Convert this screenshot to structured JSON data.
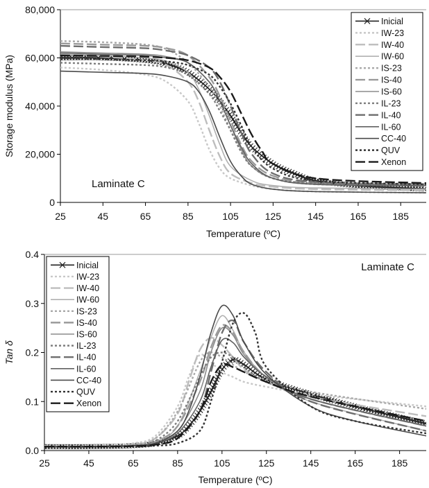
{
  "chart_data": [
    {
      "type": "line",
      "title": "",
      "annotation": "Laminate C",
      "xlabel": "Temperature (ºC)",
      "ylabel": "Storage modulus (MPa)",
      "xlim": [
        25,
        197
      ],
      "ylim": [
        0,
        80000
      ],
      "xticks": [
        "25",
        "45",
        "65",
        "85",
        "105",
        "125",
        "145",
        "165",
        "185"
      ],
      "yticks": [
        "0",
        "20,000",
        "40,000",
        "60,000",
        "80,000"
      ],
      "legend_position": "top-right",
      "grid": false,
      "series": [
        {
          "name": "Inicial",
          "color": "#222222",
          "dash": "solid",
          "marker": "x",
          "x": [
            25,
            45,
            65,
            75,
            85,
            95,
            100,
            105,
            110,
            115,
            125,
            135,
            145,
            165,
            185,
            197
          ],
          "y": [
            60000,
            60000,
            59000,
            57500,
            54000,
            47000,
            42000,
            36000,
            29000,
            23000,
            16000,
            12000,
            9000,
            7000,
            6000,
            5500
          ]
        },
        {
          "name": "IW-23",
          "color": "#c8c8c8",
          "dash": "3 3",
          "x": [
            25,
            45,
            65,
            75,
            85,
            90,
            95,
            100,
            105,
            115,
            125,
            145,
            197
          ],
          "y": [
            56000,
            55000,
            53000,
            50000,
            42000,
            33000,
            22000,
            14000,
            10000,
            7000,
            5500,
            4500,
            4000
          ]
        },
        {
          "name": "IW-40",
          "color": "#bdbdbd",
          "dash": "14 5",
          "x": [
            25,
            45,
            65,
            75,
            85,
            90,
            95,
            100,
            105,
            115,
            125,
            145,
            197
          ],
          "y": [
            61000,
            60500,
            59000,
            57000,
            50000,
            42000,
            30000,
            19000,
            12000,
            8000,
            6500,
            5500,
            5000
          ]
        },
        {
          "name": "IW-60",
          "color": "#b0b0b0",
          "dash": "solid",
          "x": [
            25,
            45,
            65,
            75,
            85,
            90,
            95,
            100,
            105,
            115,
            125,
            145,
            197
          ],
          "y": [
            61500,
            61000,
            60000,
            58500,
            54000,
            47000,
            36000,
            24000,
            15000,
            9000,
            7000,
            6000,
            5500
          ]
        },
        {
          "name": "IS-23",
          "color": "#a8a8a8",
          "dash": "3 3",
          "x": [
            25,
            45,
            65,
            75,
            85,
            95,
            100,
            105,
            110,
            115,
            125,
            145,
            197
          ],
          "y": [
            67000,
            66500,
            65500,
            63500,
            58000,
            48000,
            40000,
            30000,
            21000,
            15000,
            10000,
            7500,
            7000
          ]
        },
        {
          "name": "IS-40",
          "color": "#9a9a9a",
          "dash": "14 5",
          "x": [
            25,
            45,
            65,
            75,
            85,
            95,
            100,
            105,
            110,
            115,
            125,
            145,
            197
          ],
          "y": [
            66000,
            65500,
            65000,
            64000,
            61000,
            52000,
            44000,
            34000,
            24000,
            17000,
            11000,
            8000,
            7500
          ]
        },
        {
          "name": "IS-60",
          "color": "#8c8c8c",
          "dash": "solid",
          "x": [
            25,
            45,
            65,
            75,
            85,
            95,
            100,
            105,
            110,
            115,
            125,
            145,
            197
          ],
          "y": [
            62500,
            62000,
            61500,
            60500,
            58000,
            50000,
            42000,
            32000,
            22000,
            15000,
            10000,
            7500,
            7000
          ]
        },
        {
          "name": "IL-23",
          "color": "#7d7d7d",
          "dash": "3 3",
          "x": [
            25,
            45,
            65,
            75,
            85,
            95,
            100,
            105,
            110,
            115,
            125,
            145,
            197
          ],
          "y": [
            58000,
            57500,
            57000,
            56000,
            53000,
            45000,
            38000,
            30000,
            21000,
            15000,
            10000,
            8000,
            7500
          ]
        },
        {
          "name": "IL-40",
          "color": "#6e6e6e",
          "dash": "14 5",
          "x": [
            25,
            45,
            65,
            75,
            85,
            95,
            100,
            105,
            110,
            115,
            125,
            145,
            197
          ],
          "y": [
            65000,
            64500,
            64000,
            63000,
            61000,
            56000,
            50000,
            40000,
            29000,
            20000,
            12000,
            8500,
            7500
          ]
        },
        {
          "name": "IL-60",
          "color": "#606060",
          "dash": "solid",
          "x": [
            25,
            45,
            65,
            75,
            85,
            95,
            100,
            105,
            110,
            115,
            125,
            145,
            197
          ],
          "y": [
            62000,
            61500,
            61000,
            60000,
            58000,
            50000,
            42000,
            32000,
            23000,
            16000,
            10000,
            7500,
            7000
          ]
        },
        {
          "name": "CC-40",
          "color": "#4a4a4a",
          "dash": "solid",
          "x": [
            25,
            45,
            65,
            75,
            85,
            90,
            95,
            100,
            105,
            110,
            115,
            125,
            145,
            197
          ],
          "y": [
            54500,
            54000,
            53500,
            52500,
            50000,
            46000,
            38000,
            27000,
            17000,
            11000,
            7500,
            5500,
            4500,
            4000
          ]
        },
        {
          "name": "QUV",
          "color": "#333333",
          "dash": "3 3",
          "x": [
            25,
            45,
            65,
            75,
            85,
            95,
            100,
            105,
            110,
            115,
            125,
            145,
            197
          ],
          "y": [
            60000,
            59500,
            59000,
            58500,
            57000,
            53000,
            48000,
            41000,
            32000,
            23000,
            14000,
            9000,
            7500
          ]
        },
        {
          "name": "Xenon",
          "color": "#1a1a1a",
          "dash": "14 5",
          "x": [
            25,
            45,
            65,
            75,
            85,
            95,
            100,
            105,
            110,
            115,
            120,
            125,
            145,
            197
          ],
          "y": [
            61000,
            60800,
            60500,
            60000,
            59000,
            56000,
            52000,
            46000,
            37000,
            28000,
            21000,
            16000,
            10000,
            8000
          ]
        }
      ]
    },
    {
      "type": "line",
      "title": "",
      "annotation": "Laminate C",
      "xlabel": "Temperature (ºC)",
      "ylabel": "Tan δ",
      "xlim": [
        25,
        197
      ],
      "ylim": [
        0,
        0.4
      ],
      "xticks": [
        "25",
        "45",
        "65",
        "85",
        "105",
        "125",
        "145",
        "165",
        "185"
      ],
      "yticks": [
        "0.0",
        "0.1",
        "0.2",
        "0.3",
        "0.4"
      ],
      "legend_position": "top-left",
      "grid": false,
      "series": [
        {
          "name": "Inicial",
          "color": "#222222",
          "dash": "solid",
          "marker": "x",
          "x": [
            25,
            45,
            65,
            75,
            85,
            90,
            95,
            100,
            105,
            110,
            115,
            125,
            145,
            165,
            185,
            197
          ],
          "y": [
            0.008,
            0.008,
            0.01,
            0.015,
            0.03,
            0.05,
            0.08,
            0.12,
            0.165,
            0.185,
            0.175,
            0.145,
            0.115,
            0.09,
            0.068,
            0.055
          ]
        },
        {
          "name": "IW-23",
          "color": "#c8c8c8",
          "dash": "3 3",
          "x": [
            25,
            45,
            65,
            75,
            85,
            90,
            95,
            100,
            105,
            110,
            115,
            125,
            145,
            197
          ],
          "y": [
            0.01,
            0.01,
            0.015,
            0.03,
            0.09,
            0.15,
            0.195,
            0.18,
            0.16,
            0.15,
            0.14,
            0.13,
            0.115,
            0.09
          ]
        },
        {
          "name": "IW-40",
          "color": "#bdbdbd",
          "dash": "14 5",
          "x": [
            25,
            45,
            65,
            75,
            85,
            90,
            95,
            100,
            105,
            110,
            115,
            125,
            145,
            197
          ],
          "y": [
            0.008,
            0.008,
            0.012,
            0.025,
            0.075,
            0.14,
            0.205,
            0.23,
            0.215,
            0.19,
            0.165,
            0.14,
            0.11,
            0.07
          ]
        },
        {
          "name": "IW-60",
          "color": "#b0b0b0",
          "dash": "solid",
          "x": [
            25,
            45,
            65,
            75,
            85,
            95,
            100,
            105,
            110,
            115,
            125,
            145,
            197
          ],
          "y": [
            0.008,
            0.008,
            0.01,
            0.018,
            0.05,
            0.16,
            0.23,
            0.275,
            0.245,
            0.2,
            0.15,
            0.1,
            0.04
          ]
        },
        {
          "name": "IS-23",
          "color": "#a8a8a8",
          "dash": "3 3",
          "x": [
            25,
            45,
            65,
            75,
            85,
            95,
            100,
            105,
            110,
            115,
            125,
            145,
            197
          ],
          "y": [
            0.008,
            0.008,
            0.012,
            0.025,
            0.08,
            0.18,
            0.2,
            0.19,
            0.175,
            0.16,
            0.145,
            0.12,
            0.085
          ]
        },
        {
          "name": "IS-40",
          "color": "#9a9a9a",
          "dash": "14 5",
          "x": [
            25,
            45,
            65,
            75,
            85,
            95,
            100,
            105,
            110,
            115,
            125,
            145,
            197
          ],
          "y": [
            0.008,
            0.008,
            0.01,
            0.018,
            0.05,
            0.14,
            0.21,
            0.255,
            0.24,
            0.2,
            0.15,
            0.105,
            0.05
          ]
        },
        {
          "name": "IS-60",
          "color": "#8c8c8c",
          "dash": "solid",
          "x": [
            25,
            45,
            65,
            75,
            85,
            95,
            100,
            105,
            110,
            115,
            125,
            145,
            197
          ],
          "y": [
            0.008,
            0.008,
            0.01,
            0.015,
            0.04,
            0.12,
            0.2,
            0.25,
            0.235,
            0.195,
            0.15,
            0.105,
            0.05
          ]
        },
        {
          "name": "IL-23",
          "color": "#7d7d7d",
          "dash": "3 3",
          "x": [
            25,
            45,
            65,
            75,
            85,
            95,
            100,
            105,
            110,
            115,
            125,
            145,
            197
          ],
          "y": [
            0.008,
            0.008,
            0.01,
            0.02,
            0.06,
            0.15,
            0.19,
            0.2,
            0.19,
            0.17,
            0.14,
            0.11,
            0.06
          ]
        },
        {
          "name": "IL-40",
          "color": "#6e6e6e",
          "dash": "14 5",
          "x": [
            25,
            45,
            65,
            75,
            85,
            95,
            100,
            105,
            110,
            115,
            125,
            145,
            197
          ],
          "y": [
            0.008,
            0.008,
            0.009,
            0.012,
            0.025,
            0.08,
            0.16,
            0.24,
            0.265,
            0.22,
            0.16,
            0.1,
            0.04
          ]
        },
        {
          "name": "IL-60",
          "color": "#606060",
          "dash": "solid",
          "x": [
            25,
            45,
            65,
            75,
            85,
            95,
            100,
            105,
            110,
            115,
            125,
            145,
            197
          ],
          "y": [
            0.008,
            0.008,
            0.01,
            0.015,
            0.035,
            0.1,
            0.17,
            0.225,
            0.22,
            0.19,
            0.15,
            0.105,
            0.05
          ]
        },
        {
          "name": "CC-40",
          "color": "#4a4a4a",
          "dash": "solid",
          "x": [
            25,
            45,
            65,
            75,
            85,
            90,
            95,
            100,
            105,
            110,
            115,
            125,
            145,
            165,
            197
          ],
          "y": [
            0.008,
            0.008,
            0.01,
            0.015,
            0.04,
            0.08,
            0.15,
            0.24,
            0.295,
            0.275,
            0.22,
            0.155,
            0.09,
            0.06,
            0.03
          ]
        },
        {
          "name": "QUV",
          "color": "#333333",
          "dash": "3 3",
          "x": [
            25,
            45,
            65,
            75,
            85,
            95,
            100,
            105,
            110,
            115,
            120,
            125,
            145,
            165,
            197
          ],
          "y": [
            0.008,
            0.008,
            0.009,
            0.01,
            0.015,
            0.04,
            0.1,
            0.18,
            0.26,
            0.28,
            0.24,
            0.17,
            0.09,
            0.06,
            0.035
          ]
        },
        {
          "name": "Xenon",
          "color": "#1a1a1a",
          "dash": "14 5",
          "x": [
            25,
            45,
            65,
            75,
            85,
            95,
            100,
            105,
            110,
            115,
            125,
            145,
            197
          ],
          "y": [
            0.008,
            0.008,
            0.009,
            0.012,
            0.025,
            0.08,
            0.14,
            0.175,
            0.17,
            0.16,
            0.14,
            0.11,
            0.06
          ]
        }
      ]
    }
  ]
}
